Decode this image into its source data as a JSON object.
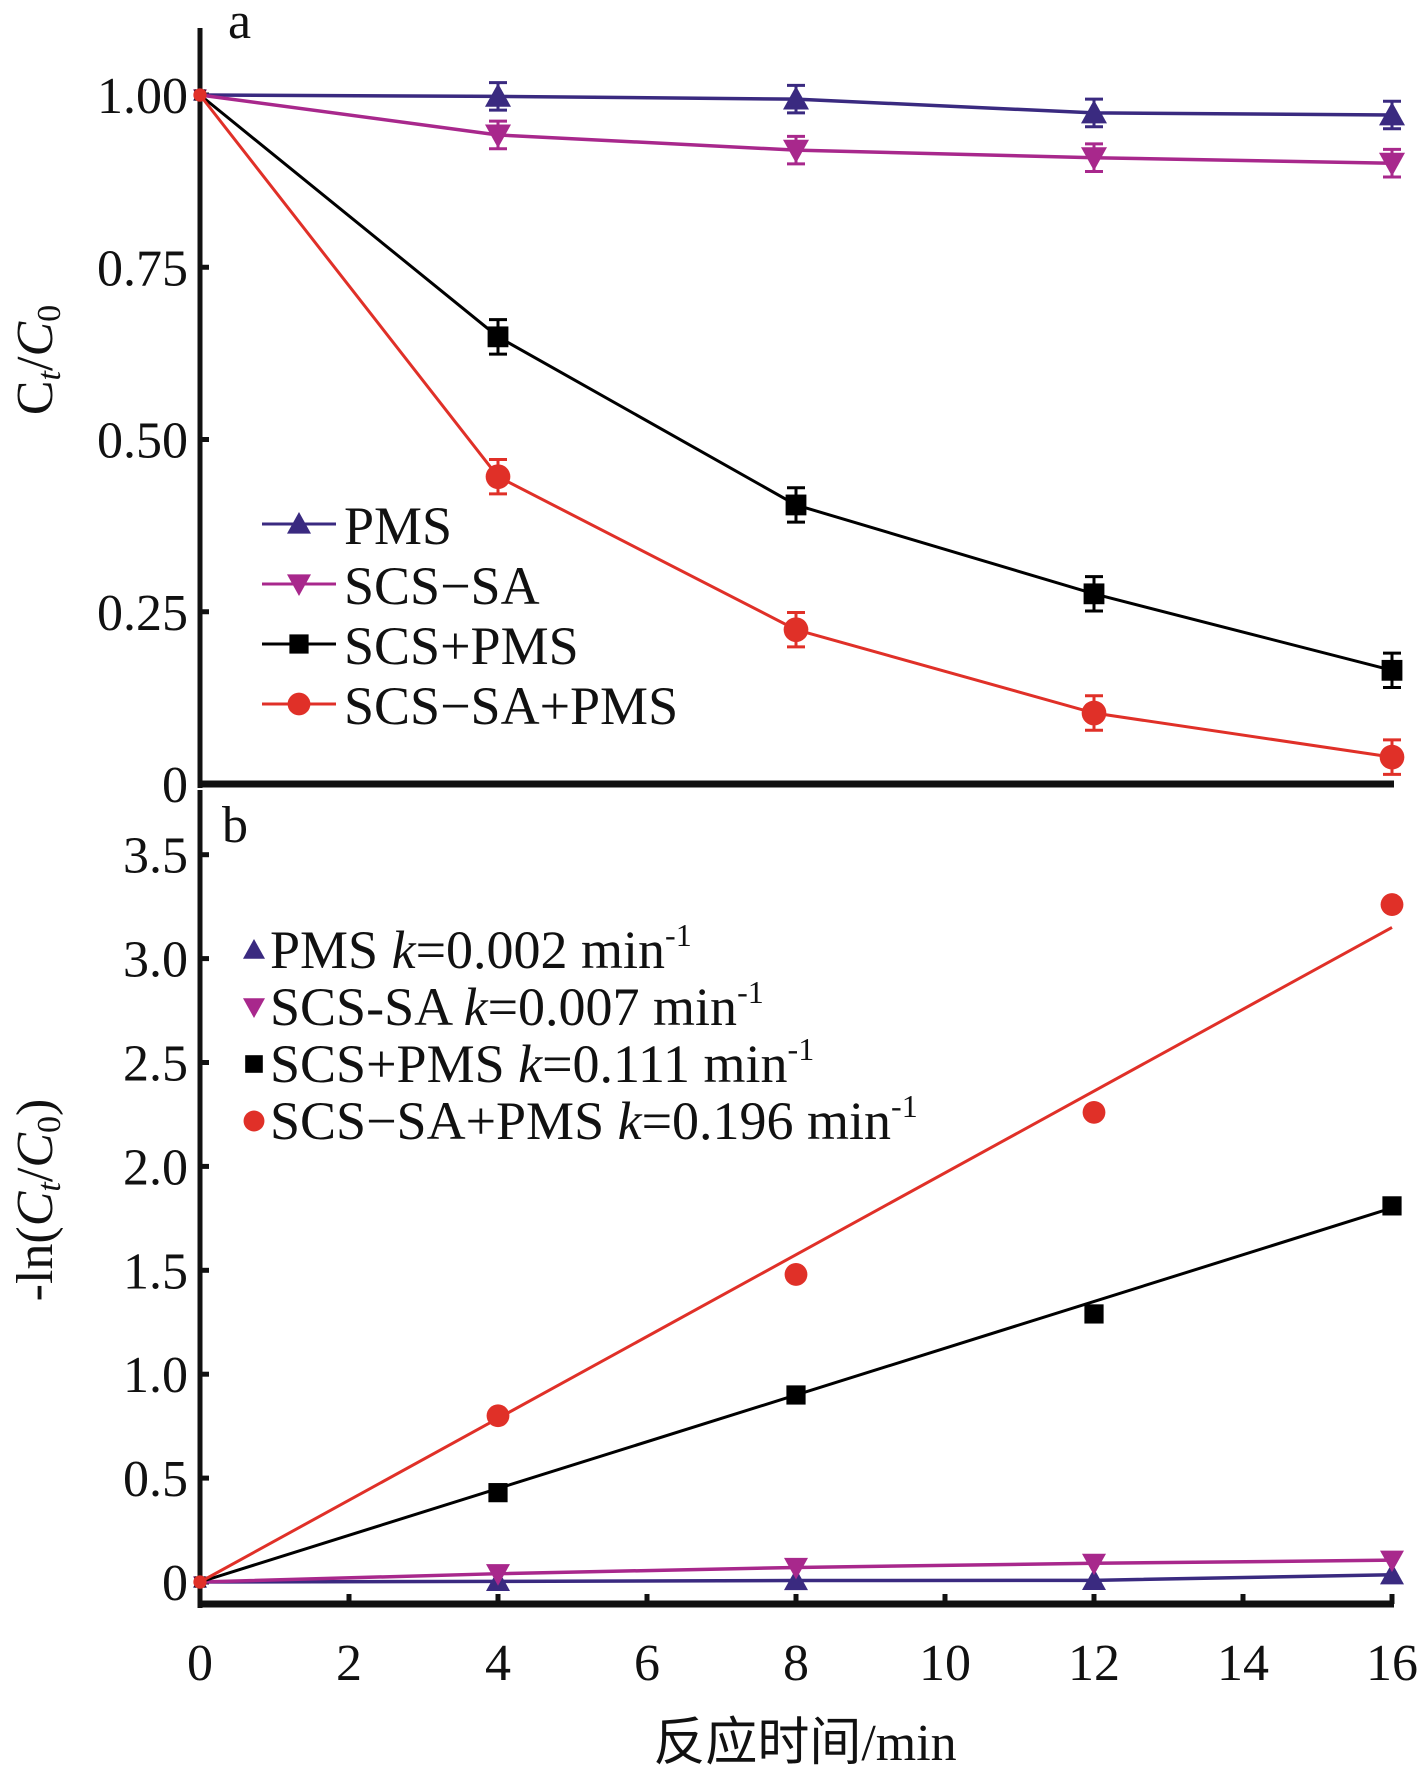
{
  "chart_data": [
    {
      "panel": "a",
      "type": "line",
      "panel_label": "a",
      "title": "",
      "xlabel": "",
      "ylabel": "Ct/C0",
      "ylabel_parts": {
        "c": "C",
        "t": "t",
        "slash": "/",
        "c0": "C",
        "zero": "0"
      },
      "xlim": [
        0,
        16
      ],
      "ylim": [
        0,
        1.08
      ],
      "yticks": [
        0,
        0.25,
        0.5,
        0.75,
        1.0
      ],
      "ytick_labels": [
        "0",
        "0.25",
        "0.50",
        "0.75",
        "1.00"
      ],
      "grid": false,
      "legend_position": "bottom-left",
      "x": [
        0,
        4,
        8,
        12,
        16
      ],
      "series": [
        {
          "name": "PMS",
          "color": "#3a2a80",
          "marker": "triangle-up",
          "values": [
            1.0,
            0.998,
            0.994,
            0.974,
            0.971
          ],
          "error": [
            0.005,
            0.02,
            0.02,
            0.02,
            0.02
          ]
        },
        {
          "name": "SCS−SA",
          "color": "#a8288c",
          "marker": "triangle-down",
          "values": [
            1.0,
            0.942,
            0.92,
            0.909,
            0.901
          ],
          "error": [
            0.005,
            0.02,
            0.02,
            0.02,
            0.02
          ]
        },
        {
          "name": "SCS+PMS",
          "color": "#000000",
          "marker": "square",
          "values": [
            1.0,
            0.649,
            0.405,
            0.276,
            0.165
          ],
          "error": [
            0.005,
            0.025,
            0.025,
            0.025,
            0.025
          ]
        },
        {
          "name": "SCS−SA+PMS",
          "color": "#e03028",
          "marker": "circle",
          "values": [
            1.0,
            0.446,
            0.224,
            0.103,
            0.039
          ],
          "error": [
            0.005,
            0.025,
            0.025,
            0.025,
            0.025
          ]
        }
      ]
    },
    {
      "panel": "b",
      "type": "scatter",
      "panel_label": "b",
      "title": "",
      "xlabel": "反应时间/min",
      "ylabel": "-ln(Ct/C0)",
      "ylabel_parts": {
        "prefix": "-ln(",
        "c": "C",
        "t": "t",
        "slash": "/",
        "c0": "C",
        "zero": "0",
        "suffix": ")"
      },
      "xlim": [
        0,
        16
      ],
      "ylim": [
        -0.05,
        3.6
      ],
      "xticks": [
        0,
        2,
        4,
        6,
        8,
        10,
        12,
        14,
        16
      ],
      "xtick_labels": [
        "0",
        "2",
        "4",
        "6",
        "8",
        "10",
        "12",
        "14",
        "16"
      ],
      "yticks": [
        0,
        0.5,
        1.0,
        1.5,
        2.0,
        2.5,
        3.0,
        3.5
      ],
      "ytick_labels": [
        "0",
        "0.5",
        "1.0",
        "1.5",
        "2.0",
        "2.5",
        "3.0",
        "3.5"
      ],
      "grid": false,
      "legend_position": "top-left",
      "x": [
        0,
        4,
        8,
        12,
        16
      ],
      "series": [
        {
          "name": "PMS",
          "k_label": "k",
          "k_text": "=0.002 min",
          "k_sup": "-1",
          "k": 0.002,
          "color": "#3a2a80",
          "marker": "triangle-up",
          "values": [
            0,
            0.003,
            0.007,
            0.008,
            0.035
          ],
          "fit": [
            0,
            0.035
          ]
        },
        {
          "name": "SCS-SA",
          "k_label": "k",
          "k_text": "=0.007 min",
          "k_sup": "-1",
          "k": 0.007,
          "color": "#a8288c",
          "marker": "triangle-down",
          "values": [
            0,
            0.04,
            0.07,
            0.09,
            0.105
          ],
          "fit": [
            0,
            0.105
          ]
        },
        {
          "name": "SCS+PMS",
          "k_label": "k",
          "k_text": "=0.111 min",
          "k_sup": "-1",
          "k": 0.111,
          "color": "#000000",
          "marker": "square",
          "values": [
            0,
            0.43,
            0.9,
            1.29,
            1.81
          ],
          "fit": [
            0,
            1.8
          ]
        },
        {
          "name": "SCS−SA+PMS",
          "k_label": "k",
          "k_text": "=0.196 min",
          "k_sup": "-1",
          "k": 0.196,
          "color": "#e03028",
          "marker": "circle",
          "values": [
            0,
            0.8,
            1.48,
            2.26,
            3.26
          ],
          "fit": [
            0,
            3.15
          ]
        }
      ]
    }
  ]
}
